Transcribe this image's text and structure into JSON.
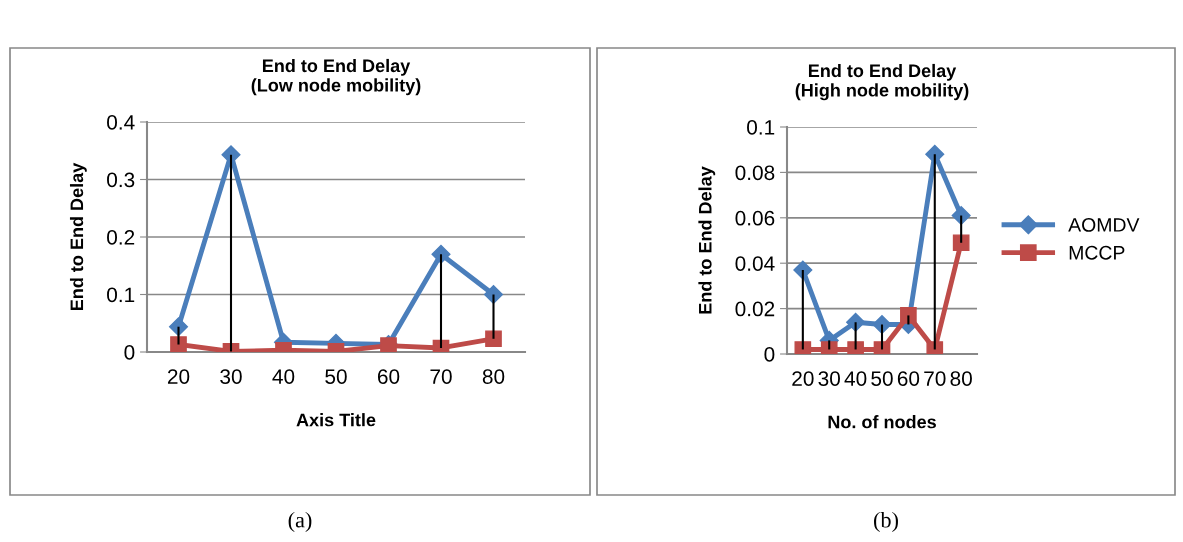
{
  "chart_data": [
    {
      "type": "line",
      "title": "End to End Delay\n(Low node mobility)",
      "xlabel": "Axis Title",
      "ylabel": "End to End Delay",
      "categories": [
        "20",
        "30",
        "40",
        "50",
        "60",
        "70",
        "80"
      ],
      "ylim": [
        0,
        0.4
      ],
      "yticks": [
        0,
        0.1,
        0.2,
        0.3,
        0.4
      ],
      "grid": "y",
      "legend": false,
      "annotations": [
        "(a)"
      ],
      "series": [
        {
          "color": "#4a7ebb",
          "marker": "diamond",
          "values": [
            0.044,
            0.343,
            0.017,
            0.015,
            0.013,
            0.17,
            0.1
          ],
          "errors": [
            [
              0.013,
              0.044
            ],
            [
              0.001,
              0.343
            ],
            null,
            null,
            null,
            [
              0.007,
              0.17
            ],
            [
              0.023,
              0.1
            ]
          ]
        },
        {
          "color": "#be4b48",
          "marker": "square",
          "values": [
            0.013,
            0.001,
            0.003,
            0.001,
            0.011,
            0.007,
            0.023
          ]
        }
      ]
    },
    {
      "type": "line",
      "title": "End to End Delay\n(High node mobility)",
      "xlabel": "No. of nodes",
      "ylabel": "End to End Delay",
      "categories": [
        "20",
        "30",
        "40",
        "50",
        "60",
        "70",
        "80"
      ],
      "ylim": [
        0,
        0.1
      ],
      "yticks": [
        0,
        0.02,
        0.04,
        0.06,
        0.08,
        0.1
      ],
      "grid": "y",
      "legend": "right",
      "annotations": [
        "(b)"
      ],
      "series": [
        {
          "name": "AOMDV",
          "color": "#4a7ebb",
          "marker": "diamond",
          "values": [
            0.037,
            0.006,
            0.014,
            0.013,
            0.013,
            0.088,
            0.061
          ],
          "errors": [
            [
              0.002,
              0.037
            ],
            [
              0.002,
              0.006
            ],
            [
              0.002,
              0.014
            ],
            [
              0.002,
              0.013
            ],
            [
              0.013,
              0.017
            ],
            [
              0.002,
              0.088
            ],
            [
              0.049,
              0.061
            ]
          ]
        },
        {
          "name": "MCCP",
          "color": "#be4b48",
          "marker": "square",
          "values": [
            0.002,
            0.002,
            0.002,
            0.002,
            0.017,
            0.002,
            0.049
          ]
        }
      ]
    }
  ]
}
